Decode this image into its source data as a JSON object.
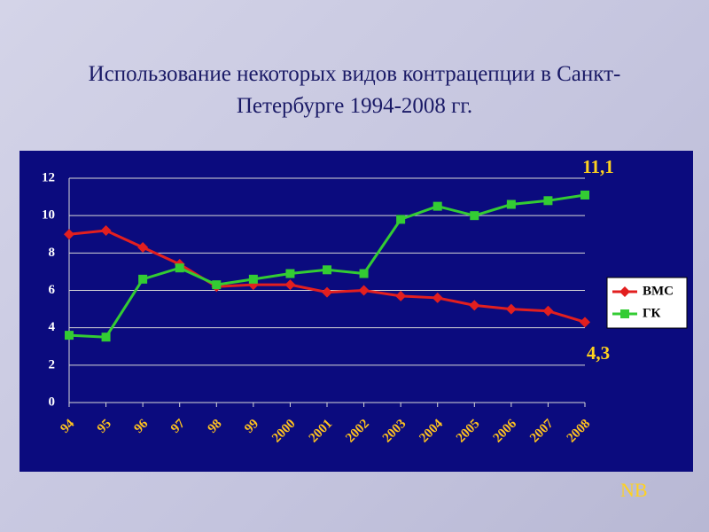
{
  "chart_data": {
    "type": "line",
    "title": "Использование некоторых видов контрацепции в Санкт-Петербурге 1994-2008 гг.",
    "categories": [
      "94",
      "95",
      "96",
      "97",
      "98",
      "99",
      "2000",
      "2001",
      "2002",
      "2003",
      "2004",
      "2005",
      "2006",
      "2007",
      "2008"
    ],
    "series": [
      {
        "name": "ВМС",
        "color": "#e21f1f",
        "marker": "diamond",
        "values": [
          9.0,
          9.2,
          8.3,
          7.4,
          6.2,
          6.3,
          6.3,
          5.9,
          6.0,
          5.7,
          5.6,
          5.2,
          5.0,
          4.9,
          4.3
        ],
        "value_labels": [
          null,
          null,
          null,
          null,
          null,
          null,
          null,
          null,
          null,
          null,
          null,
          null,
          null,
          null,
          "4,3"
        ]
      },
      {
        "name": "ГК",
        "color": "#33cc33",
        "marker": "square",
        "values": [
          3.6,
          3.5,
          6.6,
          7.2,
          6.3,
          6.6,
          6.9,
          7.1,
          6.9,
          9.8,
          10.5,
          10.0,
          10.6,
          10.8,
          11.1
        ],
        "value_labels": [
          null,
          null,
          null,
          null,
          null,
          null,
          null,
          null,
          null,
          null,
          null,
          null,
          null,
          null,
          "11,1"
        ]
      }
    ],
    "ylim": [
      0,
      12
    ],
    "yticks": [
      0,
      2,
      4,
      6,
      8,
      10,
      12
    ],
    "grid": true,
    "legend": "right"
  },
  "slide": {
    "note": "NB"
  }
}
